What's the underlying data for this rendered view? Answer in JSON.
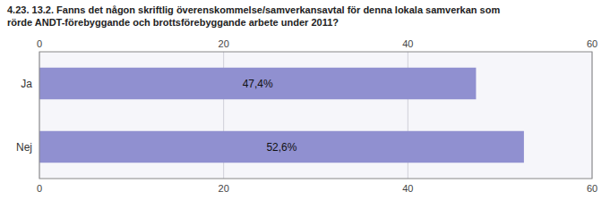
{
  "chart_data": {
    "type": "bar",
    "orientation": "horizontal",
    "title": "4.23. 13.2. Fanns det någon skriftlig överenskommelse/samverkansavtal för denna lokala samverkan som\nrörde ANDT-förebyggande och brottsförebyggande arbete under 2011?",
    "categories": [
      "Ja",
      "Nej"
    ],
    "values": [
      47.4,
      52.6
    ],
    "value_labels": [
      "47,4%",
      "52,6%"
    ],
    "data_labels": true,
    "color": "#9090d0",
    "xlim": [
      0,
      60
    ],
    "xticks": [
      0,
      20,
      40,
      60
    ],
    "grid": true
  }
}
